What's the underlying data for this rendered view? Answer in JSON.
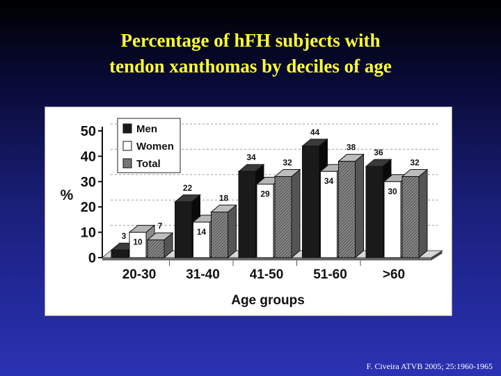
{
  "title_line1": "Percentage of hFH subjects with",
  "title_line2": "tendon xanthomas by deciles of age",
  "citation": "F. Civeira ATVB 2005; 25:1960-1965",
  "chart_data": {
    "type": "bar",
    "title": "",
    "xlabel": "Age groups",
    "ylabel": "%",
    "ylim": [
      0,
      50
    ],
    "yticks": [
      0,
      10,
      20,
      30,
      40,
      50
    ],
    "grid": true,
    "legend_placement": "top-left",
    "categories": [
      "20-30",
      "31-40",
      "41-50",
      "51-60",
      ">60"
    ],
    "series": [
      {
        "name": "Men",
        "values": [
          3,
          22,
          34,
          44,
          36
        ],
        "fill": "solid-black"
      },
      {
        "name": "Women",
        "values": [
          10,
          14,
          29,
          34,
          30
        ],
        "fill": "white"
      },
      {
        "name": "Total",
        "values": [
          7,
          18,
          32,
          38,
          32
        ],
        "fill": "hatched-gray"
      }
    ]
  }
}
